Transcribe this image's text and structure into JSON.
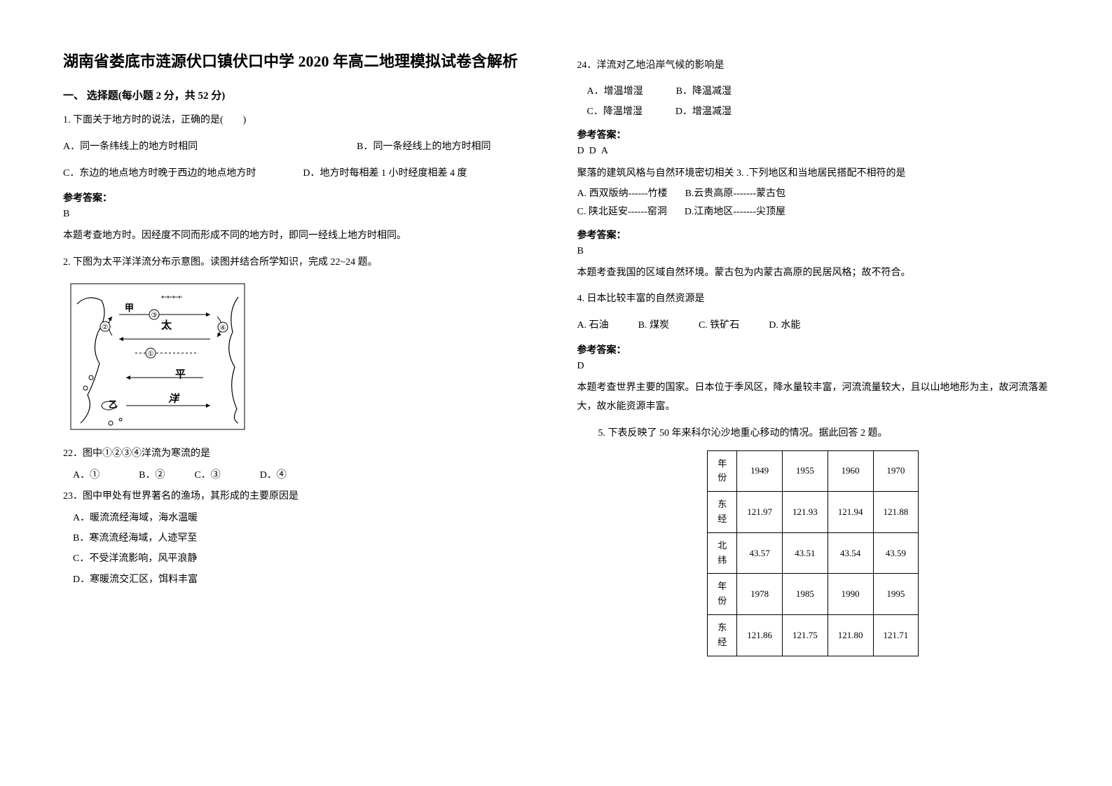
{
  "title": "湖南省娄底市涟源伏口镇伏口中学 2020 年高二地理模拟试卷含解析",
  "section1": {
    "heading": "一、 选择题(每小题 2 分，共 52 分)"
  },
  "q1": {
    "stem": "1. 下面关于地方时的说法，正确的是(　　)",
    "optA": "A．同一条纬线上的地方时相同",
    "optB": "B．同一条经线上的地方时相同",
    "optC": "C．东边的地点地方时晚于西边的地点地方时",
    "optD": "D．地方时每相差 1 小时经度相差 4 度",
    "answer_label": "参考答案：",
    "answer": "B",
    "explanation": "本题考查地方时。因经度不同而形成不同的地方时，即同一经线上地方时相同。"
  },
  "q2": {
    "stem": "2. 下图为太平洋洋流分布示意图。读图并结合所学知识，完成 22~24 题。",
    "s22": "22．图中①②③④洋流为寒流的是",
    "s22_opts": "A．①　　　　B．②　　　C．③　　　　D．④",
    "s23": "23．图中甲处有世界著名的渔场，其形成的主要原因是",
    "s23_a": "A．暖流流经海域，海水温暖",
    "s23_b": "B．寒流流经海域，人迹罕至",
    "s23_c": "C．不受洋流影响，风平浪静",
    "s23_d": "D．寒暖流交汇区，饵料丰富",
    "s24": "24．洋流对乙地沿岸气候的影响是",
    "s24_a": "A．增温增湿",
    "s24_b": "B．降温减湿",
    "s24_c": "C．降温增湿",
    "s24_d": "D．增温减湿",
    "answer_label": "参考答案：",
    "answer": "D  D  A"
  },
  "q3": {
    "stem": "聚落的建筑风格与自然环境密切相关 3. .下列地区和当地居民搭配不相符的是",
    "optA": "A. 西双版纳------竹楼",
    "optB": "B.云贵高原-------蒙古包",
    "optC": "C. 陕北延安------窑洞",
    "optD": "D.江南地区-------尖顶屋",
    "answer_label": "参考答案：",
    "answer": "B",
    "explanation": "本题考查我国的区域自然环境。蒙古包为内蒙古高原的民居风格；故不符合。"
  },
  "q4": {
    "stem": "4. 日本比较丰富的自然资源是",
    "opts": "A. 石油　　　B. 煤炭　　　C. 铁矿石　　　D. 水能",
    "answer_label": "参考答案：",
    "answer": "D",
    "explanation": "本题考查世界主要的国家。日本位于季风区，降水量较丰富，河流流量较大，且以山地地形为主，故河流落差大，故水能资源丰富。"
  },
  "q5": {
    "stem": "5. 下表反映了 50 年来科尔沁沙地重心移动的情况。据此回答 2 题。",
    "table": {
      "row_labels": [
        "年份",
        "东经",
        "北纬",
        "年份",
        "东经"
      ],
      "cols1": [
        "1949",
        "1955",
        "1960",
        "1970"
      ],
      "r1": [
        "121.97",
        "121.93",
        "121.94",
        "121.88"
      ],
      "r2": [
        "43.57",
        "43.51",
        "43.54",
        "43.59"
      ],
      "cols2": [
        "1978",
        "1985",
        "1990",
        "1995"
      ],
      "r3": [
        "121.86",
        "121.75",
        "121.80",
        "121.71"
      ]
    }
  },
  "figure": {
    "labels": {
      "jia": "甲",
      "zi": "乙",
      "tai": "太",
      "ping": "平",
      "yang": "洋"
    }
  }
}
